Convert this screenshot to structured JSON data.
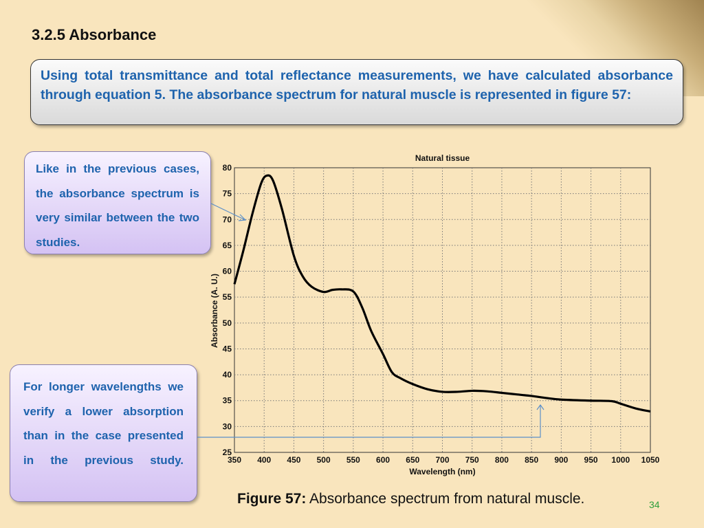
{
  "slide": {
    "heading": "3.2.5 Absorbance",
    "intro": "Using total transmittance and total reflectance measurements, we have calculated absorbance through equation 5. The absorbance spectrum for natural muscle is represented in figure 57:",
    "note_1": "Like in the previous cases, the absorbance spectrum is very similar between the two studies.",
    "note_2": "For longer wavelengths we verify a lower absorption than in the case presented in the previous study.",
    "caption_label": "Figure 57:",
    "caption_text": " Absorbance spectrum from natural muscle.",
    "page_number": "34",
    "colors": {
      "background": "#f9e5bd",
      "text_accent": "#1e63ad",
      "arrow": "#5b8fc9",
      "page_number": "#2e9e3b"
    }
  },
  "chart_data": {
    "type": "line",
    "title": "Natural tissue",
    "xlabel": "Wavelength (nm)",
    "ylabel": "Absorbance (A. U.)",
    "xlim": [
      350,
      1050
    ],
    "ylim": [
      25,
      80
    ],
    "xticks": [
      350,
      400,
      450,
      500,
      550,
      600,
      650,
      700,
      750,
      800,
      850,
      900,
      950,
      1000,
      1050
    ],
    "yticks": [
      25,
      30,
      35,
      40,
      45,
      50,
      55,
      60,
      65,
      70,
      75,
      80
    ],
    "grid": true,
    "series": [
      {
        "x": [
          350,
          365,
          380,
          395,
          405,
          415,
          430,
          450,
          465,
          480,
          500,
          515,
          530,
          550,
          565,
          580,
          600,
          615,
          630,
          650,
          675,
          700,
          725,
          750,
          775,
          800,
          825,
          850,
          875,
          900,
          950,
          985,
          1000,
          1025,
          1050
        ],
        "y": [
          57.5,
          64,
          71,
          77,
          78.5,
          77.5,
          72,
          63,
          59,
          57,
          56,
          56.4,
          56.5,
          56.1,
          53,
          48.5,
          44,
          40.5,
          39.3,
          38.2,
          37.2,
          36.7,
          36.7,
          36.9,
          36.8,
          36.5,
          36.2,
          35.9,
          35.5,
          35.2,
          35,
          34.9,
          34.4,
          33.5,
          32.9
        ]
      }
    ]
  }
}
